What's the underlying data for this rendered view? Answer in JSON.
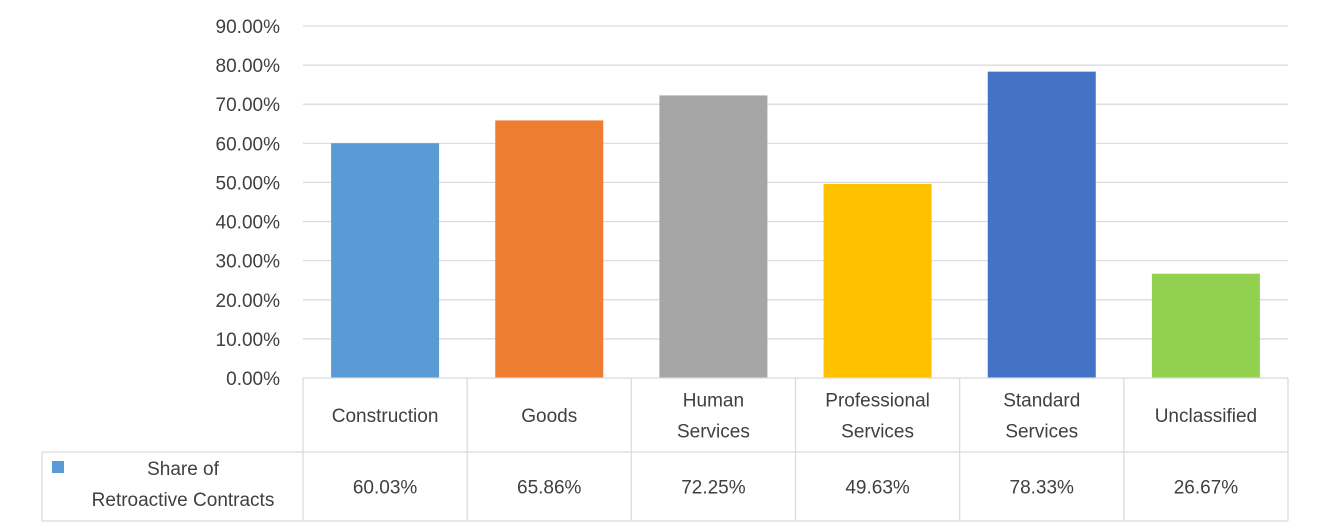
{
  "chart_data": {
    "type": "bar",
    "categories": [
      "Construction",
      "Goods",
      "Human Services",
      "Professional Services",
      "Standard Services",
      "Unclassified"
    ],
    "category_lines": [
      [
        "Construction"
      ],
      [
        "Goods"
      ],
      [
        "Human",
        "Services"
      ],
      [
        "Professional",
        "Services"
      ],
      [
        "Standard",
        "Services"
      ],
      [
        "Unclassified"
      ]
    ],
    "series": [
      {
        "name": "Share of Retroactive Contracts",
        "name_lines": [
          "Share of",
          "Retroactive Contracts"
        ],
        "values": [
          60.03,
          65.86,
          72.25,
          49.63,
          78.33,
          26.67
        ],
        "value_labels": [
          "60.03%",
          "65.86%",
          "72.25%",
          "49.63%",
          "78.33%",
          "26.67%"
        ],
        "legend_color": "#5B9BD5"
      }
    ],
    "bar_colors": [
      "#5B9BD5",
      "#ED7D31",
      "#A5A5A5",
      "#FFC000",
      "#4472C4",
      "#92D050"
    ],
    "ylim": [
      0,
      90
    ],
    "yticks": [
      0,
      10,
      20,
      30,
      40,
      50,
      60,
      70,
      80,
      90
    ],
    "ytick_labels": [
      "0.00%",
      "10.00%",
      "20.00%",
      "30.00%",
      "40.00%",
      "50.00%",
      "60.00%",
      "70.00%",
      "80.00%",
      "90.00%"
    ],
    "grid": true,
    "data_table": true,
    "gridline_color": "#D9D9D9",
    "table_line_color": "#D9D9D9"
  }
}
